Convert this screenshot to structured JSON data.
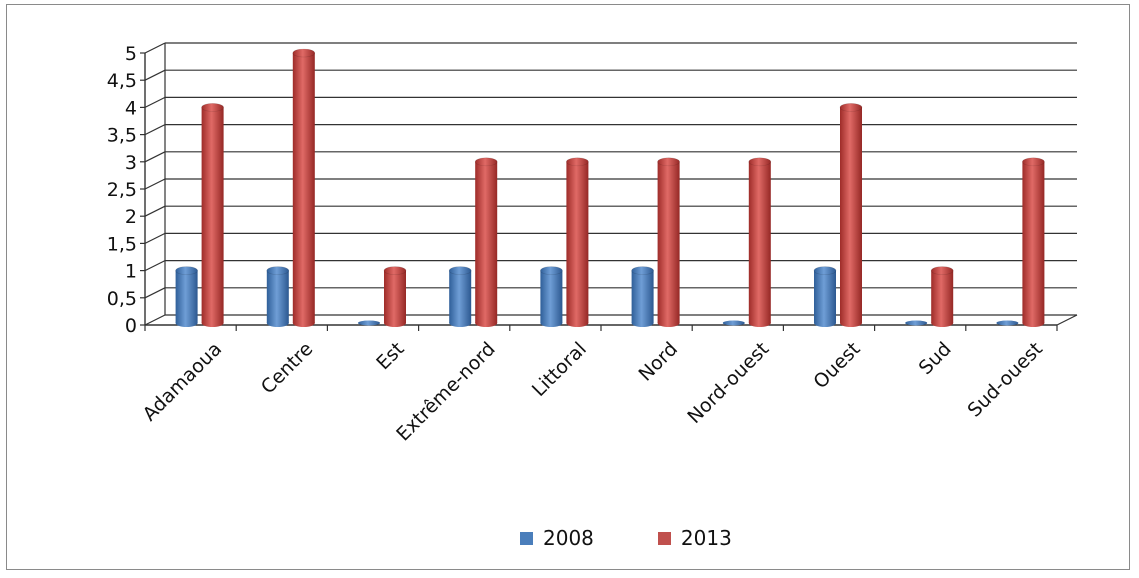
{
  "chart_data": {
    "type": "bar",
    "style": "3d-clustered-cylinder",
    "categories": [
      "Adamaoua",
      "Centre",
      "Est",
      "Extrême-nord",
      "Littoral",
      "Nord",
      "Nord-ouest",
      "Ouest",
      "Sud",
      "Sud-ouest"
    ],
    "series": [
      {
        "name": "2008",
        "color": "#4a7ebb",
        "values": [
          1,
          1,
          0,
          1,
          1,
          1,
          0,
          1,
          0,
          0
        ]
      },
      {
        "name": "2013",
        "color": "#c0504d",
        "values": [
          4,
          5,
          1,
          3,
          3,
          3,
          3,
          4,
          1,
          3
        ]
      }
    ],
    "yticks": [
      "0",
      "0,5",
      "1",
      "1,5",
      "2",
      "2,5",
      "3",
      "3,5",
      "4",
      "4,5",
      "5"
    ],
    "ylim": [
      0,
      5
    ],
    "grid": true,
    "legend_position": "bottom"
  }
}
